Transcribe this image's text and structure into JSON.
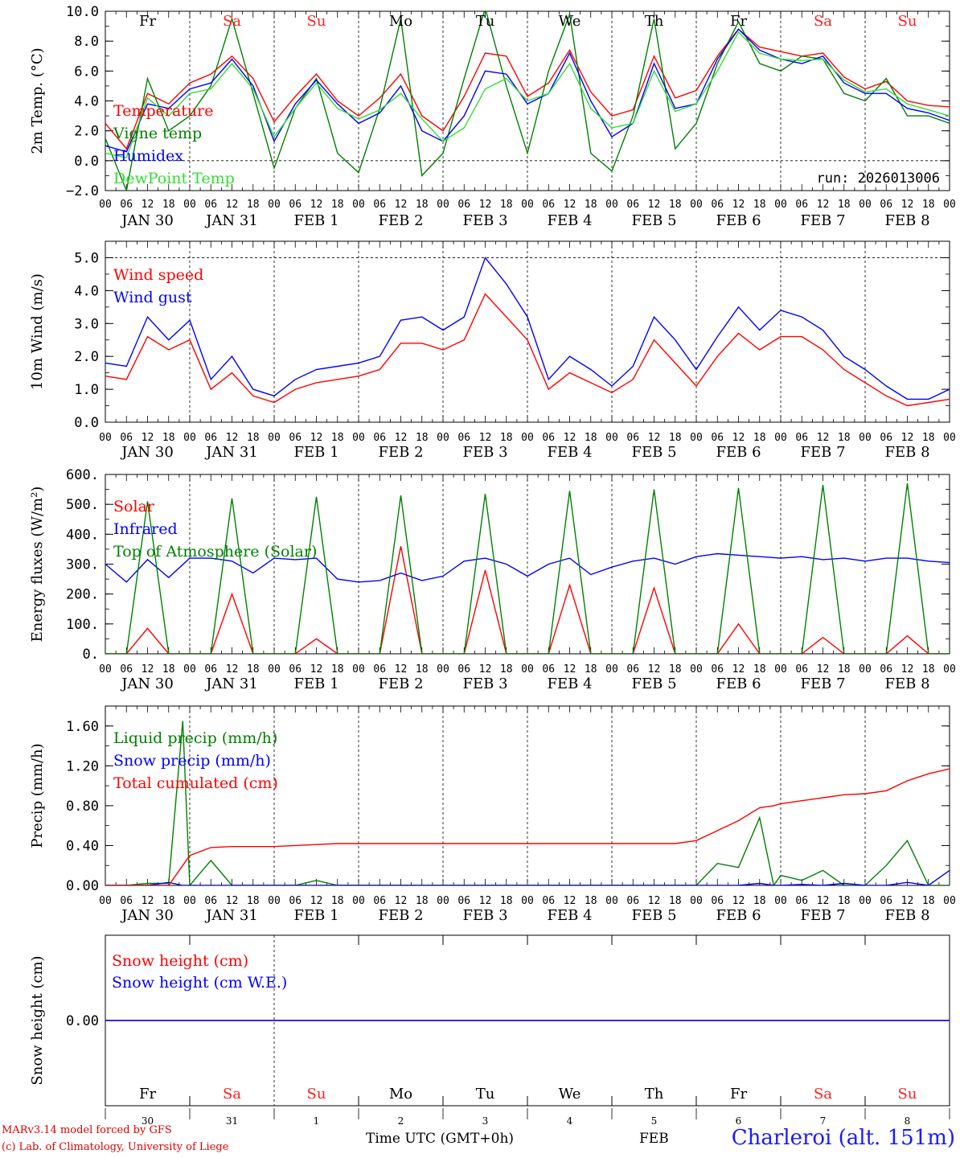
{
  "footer": {
    "credit1": "MARv3.14 model forced by GFS",
    "credit2": "(c) Lab. of Climatology, University of Liege",
    "xtitle": "Time UTC (GMT+0h)",
    "month": "FEB",
    "station": "Charleroi (alt. 151m)"
  },
  "days": {
    "names": [
      "Fr",
      "Sa",
      "Su",
      "Mo",
      "Tu",
      "We",
      "Th",
      "Fr",
      "Sa",
      "Su"
    ],
    "weekend": [
      false,
      true,
      true,
      false,
      false,
      false,
      false,
      false,
      true,
      true
    ],
    "date_labels": [
      "JAN 30",
      "JAN 31",
      "FEB  1",
      "FEB  2",
      "FEB  3",
      "FEB  4",
      "FEB  5",
      "FEB  6",
      "FEB  7",
      "FEB  8"
    ],
    "day_numbers": [
      "30",
      "31",
      "1",
      "2",
      "3",
      "4",
      "5",
      "6",
      "7",
      "8"
    ],
    "hour_labels": [
      "00",
      "06",
      "12",
      "18"
    ],
    "end_label": "00"
  },
  "colors": {
    "red": "#ff0000",
    "green": "#008000",
    "blue": "#0000ff",
    "lime": "#33dd33",
    "sat": "#ff2020"
  },
  "chart_data": [
    {
      "type": "line",
      "id": "temp",
      "ylabel": "2m Temp. (°C)",
      "ylim": [
        -2,
        10
      ],
      "yticks": [
        -2,
        0,
        2,
        4,
        6,
        8,
        10
      ],
      "ytick_labels": [
        "−2.0",
        "0.0",
        "2.0",
        "4.0",
        "6.0",
        "8.0",
        "10.0"
      ],
      "dashed_y": [
        0
      ],
      "top_dashed": false,
      "show_day_names": true,
      "annotation": "run: 2026013006",
      "x_hours": [
        0,
        6,
        12,
        18,
        24,
        30,
        36,
        42,
        48,
        54,
        60,
        66,
        72,
        78,
        84,
        90,
        96,
        102,
        108,
        114,
        120,
        126,
        132,
        138,
        144,
        150,
        156,
        162,
        168,
        174,
        180,
        186,
        192,
        198,
        204,
        210,
        216,
        222,
        228,
        234,
        240
      ],
      "series": [
        {
          "name": "Temperature",
          "color": "red",
          "values": [
            2.5,
            0.8,
            4.5,
            3.8,
            5.2,
            5.8,
            7.0,
            5.5,
            2.6,
            4.3,
            5.8,
            4.0,
            3.0,
            4.2,
            5.8,
            3.0,
            2.0,
            4.3,
            7.2,
            7.0,
            4.3,
            5.2,
            7.4,
            4.6,
            3.0,
            3.4,
            7.0,
            4.2,
            4.7,
            7.0,
            8.8,
            7.6,
            7.3,
            7.0,
            7.2,
            5.6,
            4.8,
            5.3,
            4.0,
            3.7,
            3.6
          ]
        },
        {
          "name": "Vigne temp",
          "color": "green",
          "values": [
            1.5,
            -2.0,
            5.5,
            2.0,
            3.0,
            5.0,
            9.5,
            4.5,
            -0.5,
            3.5,
            5.5,
            0.5,
            -0.8,
            3.5,
            9.5,
            -1.0,
            0.5,
            5.5,
            10.2,
            5.0,
            0.5,
            6.0,
            9.8,
            0.5,
            -0.7,
            3.0,
            9.5,
            0.8,
            2.5,
            6.5,
            9.3,
            6.5,
            6.0,
            7.0,
            6.8,
            4.5,
            4.0,
            5.5,
            3.0,
            3.0,
            2.5
          ]
        },
        {
          "name": "Humidex",
          "color": "blue",
          "values": [
            1.0,
            0.6,
            3.8,
            3.5,
            4.8,
            5.2,
            6.8,
            5.0,
            1.3,
            3.8,
            5.4,
            3.8,
            2.5,
            3.2,
            5.0,
            2.0,
            1.3,
            3.0,
            6.0,
            5.8,
            3.8,
            4.5,
            7.2,
            4.0,
            1.6,
            2.5,
            6.5,
            3.5,
            3.8,
            6.8,
            8.8,
            7.4,
            6.8,
            6.5,
            7.0,
            5.2,
            4.5,
            4.5,
            3.5,
            3.2,
            2.7
          ]
        },
        {
          "name": "DewPoint Temp",
          "color": "lime",
          "values": [
            0.5,
            0.2,
            4.2,
            3.0,
            4.5,
            4.8,
            6.5,
            4.8,
            1.6,
            3.5,
            5.2,
            3.5,
            2.8,
            3.4,
            4.5,
            2.8,
            1.3,
            2.2,
            4.8,
            5.5,
            4.0,
            4.5,
            6.5,
            3.5,
            2.2,
            2.5,
            6.0,
            3.3,
            3.8,
            6.0,
            8.6,
            7.2,
            6.8,
            6.7,
            6.8,
            5.4,
            4.6,
            4.8,
            3.8,
            3.4,
            3.0
          ]
        }
      ]
    },
    {
      "type": "line",
      "id": "wind",
      "ylabel": "10m Wind (m/s)",
      "ylim": [
        0,
        5.5
      ],
      "yticks": [
        0,
        1,
        2,
        3,
        4,
        5
      ],
      "ytick_labels": [
        "0.0",
        "1.0",
        "2.0",
        "3.0",
        "4.0",
        "5.0"
      ],
      "dashed_y": [
        5
      ],
      "top_dashed": false,
      "show_day_names": false,
      "x_hours": [
        0,
        6,
        12,
        18,
        24,
        30,
        36,
        42,
        48,
        54,
        60,
        66,
        72,
        78,
        84,
        90,
        96,
        102,
        108,
        114,
        120,
        126,
        132,
        138,
        144,
        150,
        156,
        162,
        168,
        174,
        180,
        186,
        192,
        198,
        204,
        210,
        216,
        222,
        228,
        234,
        240
      ],
      "series": [
        {
          "name": "Wind speed",
          "color": "red",
          "values": [
            1.4,
            1.3,
            2.6,
            2.2,
            2.5,
            1.0,
            1.5,
            0.8,
            0.6,
            1.0,
            1.2,
            1.3,
            1.4,
            1.6,
            2.4,
            2.4,
            2.2,
            2.5,
            3.9,
            3.2,
            2.5,
            1.0,
            1.5,
            1.2,
            0.9,
            1.3,
            2.5,
            1.8,
            1.1,
            2.0,
            2.7,
            2.2,
            2.6,
            2.6,
            2.2,
            1.6,
            1.2,
            0.8,
            0.5,
            0.6,
            0.7
          ]
        },
        {
          "name": "Wind gust",
          "color": "blue",
          "values": [
            1.8,
            1.7,
            3.2,
            2.5,
            3.1,
            1.3,
            2.0,
            1.0,
            0.8,
            1.3,
            1.6,
            1.7,
            1.8,
            2.0,
            3.1,
            3.2,
            2.8,
            3.2,
            5.0,
            4.2,
            3.2,
            1.3,
            2.0,
            1.6,
            1.1,
            1.7,
            3.2,
            2.5,
            1.6,
            2.6,
            3.5,
            2.8,
            3.4,
            3.2,
            2.8,
            2.0,
            1.6,
            1.1,
            0.7,
            0.7,
            1.0
          ]
        }
      ]
    },
    {
      "type": "line",
      "id": "energy",
      "ylabel": "Energy fluxes (W/m²)",
      "ylim": [
        0,
        600
      ],
      "yticks": [
        0,
        100,
        200,
        300,
        400,
        500,
        600
      ],
      "ytick_labels": [
        "0.",
        "100.",
        "200.",
        "300.",
        "400.",
        "500.",
        "600."
      ],
      "dashed_y": [],
      "top_dashed": false,
      "show_day_names": false,
      "x_hours": [
        0,
        6,
        12,
        18,
        24,
        30,
        36,
        42,
        48,
        54,
        60,
        66,
        72,
        78,
        84,
        90,
        96,
        102,
        108,
        114,
        120,
        126,
        132,
        138,
        144,
        150,
        156,
        162,
        168,
        174,
        180,
        186,
        192,
        198,
        204,
        210,
        216,
        222,
        228,
        234,
        240
      ],
      "series": [
        {
          "name": "Solar",
          "color": "red",
          "values": [
            0,
            0,
            85,
            0,
            0,
            0,
            200,
            0,
            0,
            0,
            50,
            0,
            0,
            0,
            360,
            0,
            0,
            0,
            280,
            0,
            0,
            0,
            230,
            0,
            0,
            0,
            220,
            0,
            0,
            0,
            100,
            0,
            0,
            0,
            55,
            0,
            0,
            0,
            60,
            0,
            0
          ]
        },
        {
          "name": "Infrared",
          "color": "blue",
          "values": [
            300,
            240,
            315,
            255,
            320,
            320,
            310,
            270,
            320,
            315,
            320,
            250,
            240,
            245,
            270,
            245,
            260,
            310,
            320,
            300,
            260,
            300,
            320,
            265,
            290,
            310,
            320,
            300,
            325,
            335,
            330,
            325,
            320,
            325,
            315,
            320,
            310,
            320,
            320,
            310,
            305
          ]
        },
        {
          "name": "Top of Atmosphere (Solar)",
          "color": "green",
          "values": [
            0,
            0,
            510,
            0,
            0,
            0,
            520,
            0,
            0,
            0,
            525,
            0,
            0,
            0,
            530,
            0,
            0,
            0,
            535,
            0,
            0,
            0,
            545,
            0,
            0,
            0,
            550,
            0,
            0,
            0,
            555,
            0,
            0,
            0,
            565,
            0,
            0,
            0,
            570,
            0,
            0
          ]
        }
      ]
    },
    {
      "type": "line",
      "id": "precip",
      "ylabel": "Precip (mm/h)",
      "ylim": [
        0,
        1.8
      ],
      "yticks": [
        0,
        0.4,
        0.8,
        1.2,
        1.6
      ],
      "ytick_labels": [
        "0.00",
        "0.40",
        "0.80",
        "1.20",
        "1.60"
      ],
      "dashed_y": [],
      "top_dashed": false,
      "show_day_names": false,
      "x_hours": [
        0,
        6,
        12,
        18,
        22,
        24,
        30,
        36,
        42,
        48,
        54,
        60,
        66,
        72,
        78,
        84,
        90,
        96,
        102,
        108,
        114,
        120,
        126,
        132,
        138,
        144,
        150,
        156,
        162,
        168,
        174,
        180,
        186,
        190,
        192,
        198,
        204,
        210,
        216,
        222,
        228,
        234,
        240
      ],
      "series": [
        {
          "name": "Liquid precip (mm/h)",
          "color": "green",
          "values": [
            0,
            0,
            0.02,
            0.02,
            1.65,
            0,
            0.25,
            0,
            0,
            0,
            0,
            0.05,
            0,
            0,
            0,
            0,
            0,
            0,
            0,
            0,
            0,
            0,
            0,
            0,
            0,
            0,
            0,
            0,
            0,
            0,
            0.22,
            0.18,
            0.68,
            0,
            0.1,
            0.05,
            0.15,
            0,
            0,
            0.2,
            0.45,
            0,
            0
          ]
        },
        {
          "name": "Snow precip (mm/h)",
          "color": "blue",
          "values": [
            0,
            0,
            0,
            0.03,
            0,
            0,
            0,
            0,
            0,
            0,
            0,
            0,
            0,
            0,
            0,
            0,
            0,
            0,
            0,
            0,
            0,
            0,
            0,
            0,
            0,
            0,
            0,
            0,
            0,
            0,
            0,
            0,
            0.02,
            0,
            0,
            0.01,
            0,
            0.02,
            0,
            0,
            0.03,
            0,
            0.15
          ]
        },
        {
          "name": "Total cumulated (cm)",
          "color": "red",
          "values": [
            0,
            0,
            0,
            0,
            0.2,
            0.3,
            0.38,
            0.39,
            0.39,
            0.39,
            0.4,
            0.41,
            0.42,
            0.42,
            0.42,
            0.42,
            0.42,
            0.42,
            0.42,
            0.42,
            0.42,
            0.42,
            0.42,
            0.42,
            0.42,
            0.42,
            0.42,
            0.42,
            0.42,
            0.45,
            0.55,
            0.65,
            0.78,
            0.8,
            0.82,
            0.85,
            0.88,
            0.91,
            0.92,
            0.95,
            1.05,
            1.12,
            1.17
          ]
        }
      ]
    },
    {
      "type": "line",
      "id": "snow",
      "ylabel": "Snow height (cm)",
      "ylim": [
        -1,
        1
      ],
      "yticks": [
        0
      ],
      "ytick_labels": [
        "0.00"
      ],
      "dashed_y": [],
      "top_dashed": false,
      "show_day_names": true,
      "x_hours": [
        0,
        240
      ],
      "series": [
        {
          "name": "Snow height (cm)",
          "color": "red",
          "values": [
            0,
            0
          ]
        },
        {
          "name": "Snow height (cm W.E.)",
          "color": "blue",
          "values": [
            0,
            0
          ]
        }
      ]
    }
  ]
}
